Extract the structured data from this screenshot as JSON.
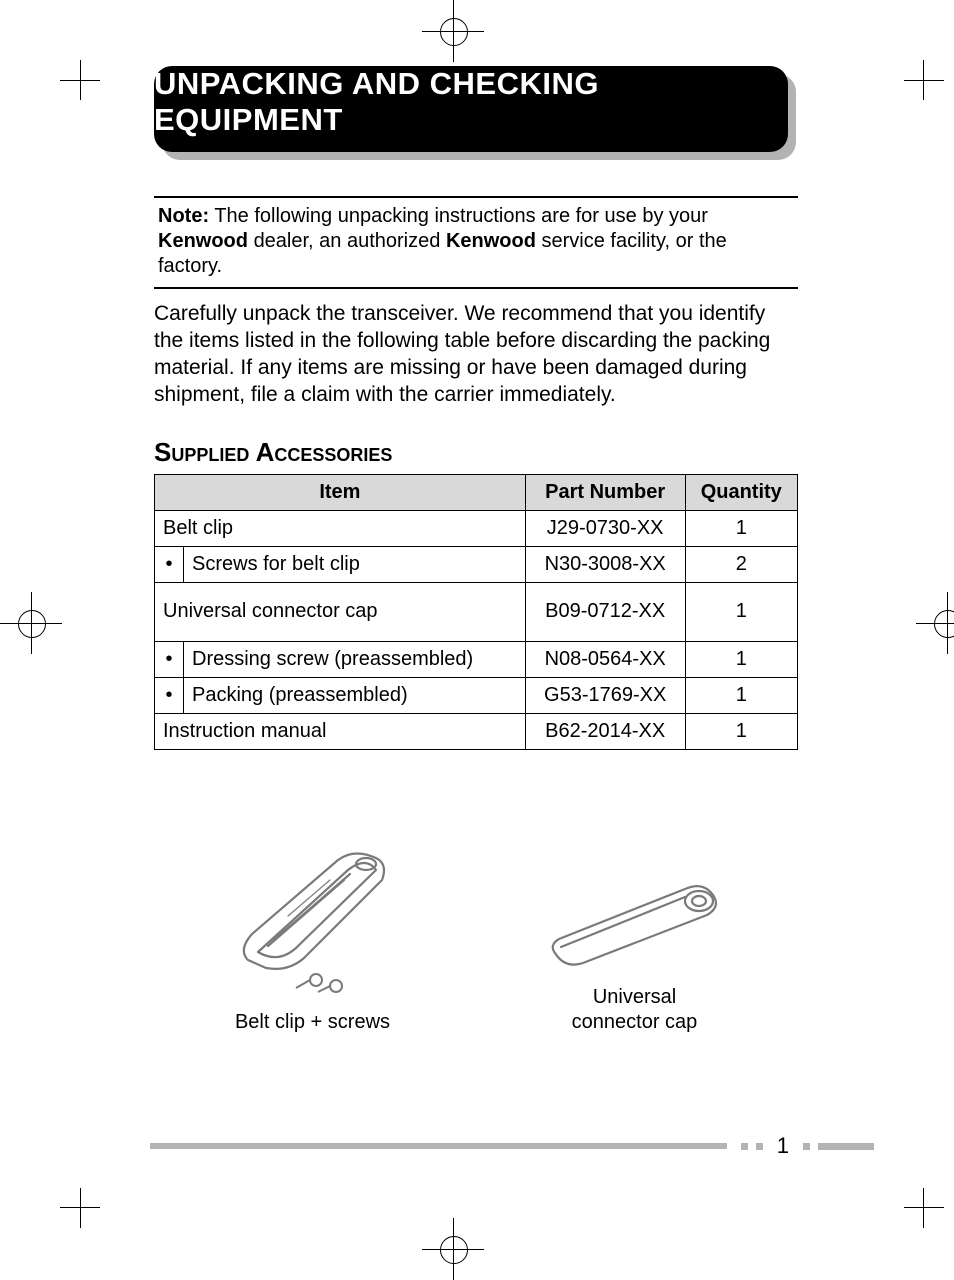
{
  "banner": {
    "title": "UNPACKING AND CHECKING EQUIPMENT",
    "bg": "#000000",
    "shadow": "#b3b3b3",
    "text_color": "#ffffff"
  },
  "note": {
    "label": "Note:",
    "text_before_brand1": "The following unpacking instructions are for use by your ",
    "brand1": "Kenwood",
    "text_mid": " dealer, an authorized ",
    "brand2": "Kenwood",
    "text_after": " service facility, or the factory."
  },
  "body_paragraph": "Carefully unpack the transceiver.  We recommend that you identify the items listed in the following table before discarding the packing material.  If any items are missing or have been damaged during shipment, file a claim with the carrier immediately.",
  "section_heading": "Supplied Accessories",
  "table": {
    "header_bg": "#d9d9d9",
    "columns": [
      "Item",
      "Part Number",
      "Quantity"
    ],
    "rows": [
      {
        "bullet": "",
        "item": "Belt clip",
        "part": "J29-0730-XX",
        "qty": "1",
        "tall": false
      },
      {
        "bullet": "•",
        "item": "Screws for belt clip",
        "part": "N30-3008-XX",
        "qty": "2",
        "tall": false
      },
      {
        "bullet": "",
        "item": "Universal connector cap",
        "part": "B09-0712-XX",
        "qty": "1",
        "tall": true
      },
      {
        "bullet": "•",
        "item": "Dressing screw (preassembled)",
        "part": "N08-0564-XX",
        "qty": "1",
        "tall": false
      },
      {
        "bullet": "•",
        "item": "Packing (preassembled)",
        "part": "G53-1769-XX",
        "qty": "1",
        "tall": false
      },
      {
        "bullet": "",
        "item": "Instruction manual",
        "part": "B62-2014-XX",
        "qty": "1",
        "tall": false
      }
    ]
  },
  "illustrations": {
    "left_caption": "Belt clip + screws",
    "right_caption_line1": "Universal",
    "right_caption_line2": "connector cap"
  },
  "footer": {
    "page_number": "1",
    "bar_color": "#b3b3b3"
  }
}
